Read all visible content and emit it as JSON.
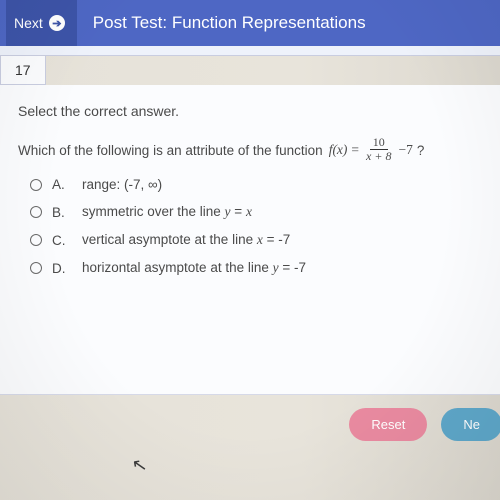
{
  "colors": {
    "header_bg": "#4e67c4",
    "header_btn_bg": "#3d54a8",
    "page_bg": "#fbfcfe",
    "reset_btn": "#e98aa0",
    "next_btn": "#5ea7c9",
    "text": "#4a4a4a"
  },
  "header": {
    "next_label": "Next",
    "title": "Post Test: Function Representations"
  },
  "question": {
    "number": "17",
    "prompt": "Select the correct answer.",
    "stem_prefix": "Which of the following is an attribute of the function",
    "fx": "f(x)",
    "equals": " = ",
    "frac_num": "10",
    "frac_den": "x + 8",
    "tail": "−7",
    "qmark": "?",
    "options": [
      {
        "label": "A.",
        "text": "range: (-7, ∞)"
      },
      {
        "label": "B.",
        "text_html": "symmetric over the line <span class='mi'>y</span> = <span class='mi'>x</span>"
      },
      {
        "label": "C.",
        "text_html": "vertical asymptote at the line <span class='mi'>x</span> = -7"
      },
      {
        "label": "D.",
        "text_html": "horizontal asymptote at the line <span class='mi'>y</span> = -7"
      }
    ]
  },
  "footer": {
    "reset_label": "Reset",
    "next_label": "Ne"
  }
}
